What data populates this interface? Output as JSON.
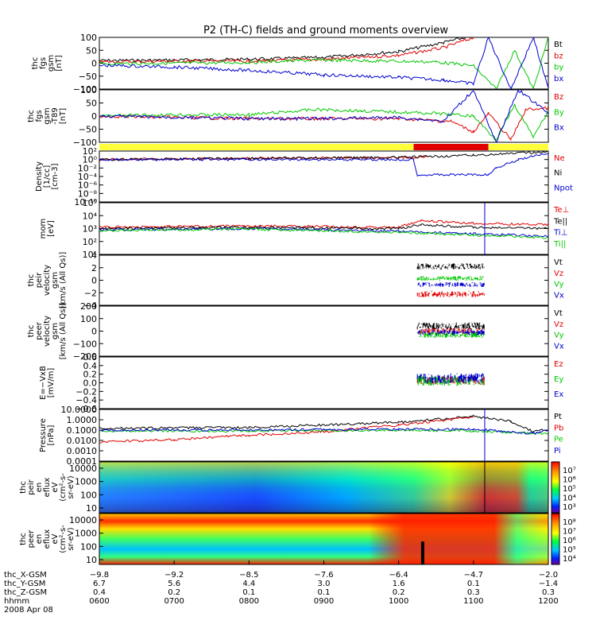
{
  "title": "P2 (TH-C) fields and ground moments overview",
  "colors": {
    "black": "#000000",
    "red": "#e00000",
    "green": "#00c800",
    "blue": "#0000d0",
    "yellow": "#ffff3c"
  },
  "chart_data": [
    {
      "type": "line",
      "ylabel": [
        "thc",
        "fgs",
        "gsm",
        "[nT]"
      ],
      "ylim": [
        -100,
        100
      ],
      "ticks": [
        "100",
        "50",
        "0",
        "−50",
        "−100"
      ],
      "series": [
        {
          "name": "Bt",
          "color": "black",
          "x": [
            6.0,
            7.0,
            8.0,
            9.0,
            10.0,
            10.6,
            10.9,
            11.0
          ],
          "y": [
            10,
            12,
            15,
            22,
            45,
            80,
            100,
            100
          ]
        },
        {
          "name": "bz",
          "color": "red",
          "x": [
            6.0,
            7.0,
            8.0,
            9.0,
            10.0,
            10.6,
            10.9,
            11.0
          ],
          "y": [
            5,
            8,
            8,
            15,
            30,
            60,
            90,
            100
          ]
        },
        {
          "name": "by",
          "color": "green",
          "x": [
            6.0,
            7.0,
            8.0,
            8.9,
            9.5,
            10.5,
            11.0,
            11.3,
            11.55,
            11.8,
            12.0
          ],
          "y": [
            -2,
            0,
            3,
            12,
            10,
            5,
            -10,
            -100,
            50,
            -100,
            100
          ]
        },
        {
          "name": "bx",
          "color": "blue",
          "x": [
            6.0,
            7.0,
            8.0,
            9.0,
            10.0,
            10.6,
            11.0,
            11.2,
            11.5,
            11.8,
            12.0
          ],
          "y": [
            -8,
            -15,
            -28,
            -45,
            -55,
            -65,
            -80,
            100,
            -100,
            100,
            -100
          ]
        }
      ]
    },
    {
      "type": "line",
      "ylabel": [
        "thc",
        "fgs",
        "gsm",
        "-T89",
        "[nT]"
      ],
      "ylim": [
        -100,
        100
      ],
      "ticks": [
        "100",
        "50",
        "0",
        "−50",
        "−100"
      ],
      "series": [
        {
          "name": "Bz",
          "color": "red",
          "x": [
            6.0,
            7.0,
            8.0,
            9.0,
            10.0,
            10.7,
            11.0,
            11.2,
            11.5,
            11.7,
            12.0
          ],
          "y": [
            0,
            -5,
            -10,
            -10,
            -10,
            -20,
            -60,
            10,
            -90,
            25,
            30
          ]
        },
        {
          "name": "By",
          "color": "green",
          "x": [
            6.0,
            7.0,
            8.0,
            8.9,
            9.5,
            10.5,
            11.0,
            11.3,
            11.55,
            11.8,
            12.0
          ],
          "y": [
            0,
            5,
            5,
            25,
            20,
            10,
            0,
            -90,
            40,
            -80,
            20
          ]
        },
        {
          "name": "Bx",
          "color": "blue",
          "x": [
            6.0,
            7.0,
            8.0,
            9.0,
            10.0,
            10.6,
            11.0,
            11.3,
            11.6,
            12.0
          ],
          "y": [
            0,
            -5,
            -10,
            -10,
            -5,
            -20,
            100,
            -100,
            100,
            10
          ]
        }
      ]
    },
    {
      "type": "bar_status",
      "description": "mode bar",
      "segments": [
        {
          "color": "yellow",
          "from": 6.0,
          "to": 10.2
        },
        {
          "color": "red",
          "from": 10.2,
          "to": 11.2
        },
        {
          "color": "yellow",
          "from": 11.2,
          "to": 12.0
        }
      ]
    },
    {
      "type": "line",
      "log": true,
      "ylabel": [
        "Density",
        "[1/cc]",
        "[cm-3]"
      ],
      "ylim_exp": [
        -10,
        2
      ],
      "ticks": [
        "10²",
        "10⁰",
        "10⁻²",
        "10⁻⁴",
        "10⁻⁶",
        "10⁻⁸",
        "10⁻¹⁰"
      ],
      "series": [
        {
          "name": "Ne",
          "color": "red",
          "x": [
            6.0,
            8.0,
            10.0,
            10.4
          ],
          "y": [
            0.0,
            0.3,
            0.5,
            0.5
          ]
        },
        {
          "name": "Ni",
          "color": "black",
          "x": [
            6.0,
            8.0,
            10.0,
            11.0,
            12.0
          ],
          "y": [
            0.0,
            0.3,
            0.5,
            1.0,
            1.8
          ]
        },
        {
          "name": "Npot",
          "color": "blue",
          "x": [
            6.0,
            10.2,
            10.25,
            11.2,
            11.3,
            11.6,
            12.0
          ],
          "y": [
            0.0,
            0.0,
            -3.6,
            -3.6,
            -2.0,
            0.0,
            1.5
          ]
        }
      ]
    },
    {
      "type": "line",
      "log": true,
      "ylabel": [
        "mom",
        "[eV]"
      ],
      "ylim_exp": [
        1,
        5
      ],
      "ticks": [
        "10⁵",
        "10⁴",
        "10³",
        "10²",
        "10¹"
      ],
      "series": [
        {
          "name": "Te⊥",
          "color": "red",
          "x": [
            6.0,
            8.0,
            10.0,
            10.3,
            11.0,
            12.0
          ],
          "y": [
            3.1,
            3.2,
            3.1,
            3.6,
            3.4,
            3.3
          ]
        },
        {
          "name": "Te||",
          "color": "black",
          "x": [
            6.0,
            8.0,
            10.0,
            10.3,
            11.0,
            12.0
          ],
          "y": [
            3.0,
            3.1,
            3.0,
            3.3,
            3.1,
            3.0
          ]
        },
        {
          "name": "Ti⊥",
          "color": "blue",
          "x": [
            6.0,
            8.0,
            10.0,
            11.0,
            12.0
          ],
          "y": [
            2.9,
            3.0,
            2.8,
            2.6,
            2.4
          ]
        },
        {
          "name": "Ti||",
          "color": "green",
          "x": [
            6.0,
            8.0,
            10.0,
            11.0,
            12.0
          ],
          "y": [
            2.85,
            2.95,
            2.7,
            2.5,
            2.3
          ]
        }
      ]
    },
    {
      "type": "scatter_block",
      "ylabel": [
        "thc",
        "peir",
        "velocity",
        "gsm",
        "[km/s (All Qs)]"
      ],
      "ylim": [
        -4,
        4
      ],
      "ticks": [
        "4",
        "2",
        "0",
        "−2",
        "−4"
      ],
      "xrange": [
        10.25,
        11.15
      ],
      "series": [
        {
          "name": "Vt",
          "color": "black",
          "center": 2.2,
          "spread": 1.0
        },
        {
          "name": "Vz",
          "color": "red",
          "center": -2.2,
          "spread": 1.0
        },
        {
          "name": "Vy",
          "color": "green",
          "center": 0.3,
          "spread": 0.8
        },
        {
          "name": "Vx",
          "color": "blue",
          "center": -0.7,
          "spread": 0.8
        }
      ]
    },
    {
      "type": "scatter_block",
      "ylabel": [
        "thc",
        "peer",
        "velocity",
        "gsm",
        "[km/s (All Qs)]"
      ],
      "ylim": [
        -200,
        200
      ],
      "ticks": [
        "200",
        "100",
        "0",
        "−100",
        "−200"
      ],
      "xrange": [
        10.25,
        11.15
      ],
      "series": [
        {
          "name": "Vt",
          "color": "black",
          "center": 40,
          "spread": 60
        },
        {
          "name": "Vz",
          "color": "red",
          "center": 0,
          "spread": 50
        },
        {
          "name": "Vy",
          "color": "green",
          "center": -30,
          "spread": 50
        },
        {
          "name": "Vx",
          "color": "blue",
          "center": -10,
          "spread": 50
        }
      ]
    },
    {
      "type": "scatter_block",
      "ylabel": [
        "E=−VxB",
        "[mV/m]"
      ],
      "ylim": [
        -0.6,
        0.6
      ],
      "ticks": [
        "0.6",
        "0.4",
        "0.2",
        "0.0",
        "−0.2",
        "−0.4",
        "−0.6"
      ],
      "xrange": [
        10.25,
        11.15
      ],
      "series": [
        {
          "name": "Ez",
          "color": "red",
          "center": 0.05,
          "spread": 0.2
        },
        {
          "name": "Ey",
          "color": "green",
          "center": 0.05,
          "spread": 0.25
        },
        {
          "name": "Ex",
          "color": "blue",
          "center": 0.1,
          "spread": 0.25
        }
      ]
    },
    {
      "type": "line",
      "log": true,
      "ylabel": [
        "Pressure",
        "[nPa]"
      ],
      "ylim_exp": [
        -4,
        2
      ],
      "ticks": [
        "10.0000",
        "1.0000",
        "0.1000",
        "0.0100",
        "0.0010",
        "0.0001"
      ],
      "series": [
        {
          "name": "Pt",
          "color": "black",
          "x": [
            6.0,
            8.0,
            10.0,
            11.0,
            11.5,
            11.8,
            12.0
          ],
          "y": [
            -0.2,
            -0.1,
            0.5,
            1.2,
            0.6,
            -0.6,
            -0.3
          ]
        },
        {
          "name": "Pb",
          "color": "red",
          "x": [
            6.0,
            7.0,
            8.0,
            9.0,
            10.0,
            11.0
          ],
          "y": [
            -1.8,
            -1.5,
            -1.0,
            -0.6,
            0.2,
            1.1
          ]
        },
        {
          "name": "Pe",
          "color": "green",
          "x": [
            6.0,
            8.0,
            10.0,
            11.0,
            12.0
          ],
          "y": [
            -0.5,
            -0.5,
            -0.4,
            -0.5,
            -0.8
          ]
        },
        {
          "name": "Pi",
          "color": "blue",
          "x": [
            6.0,
            8.0,
            10.0,
            11.0,
            11.8,
            12.0
          ],
          "y": [
            -0.4,
            -0.4,
            -0.3,
            -0.3,
            -0.8,
            -0.4
          ]
        }
      ]
    },
    {
      "type": "heatmap",
      "ylabel": [
        "thc",
        "peir",
        "en",
        "eflux",
        "eV",
        "(cm²-s-",
        "sr-eV)"
      ],
      "yticks": [
        "10000",
        "1000",
        "100",
        "10"
      ],
      "colorbar": [
        "10⁷",
        "10⁶",
        "10⁵",
        "10⁴",
        "10³"
      ]
    },
    {
      "type": "heatmap",
      "ylabel": [
        "thc",
        "peer",
        "en",
        "eflux",
        "eV",
        "(cm²-s-",
        "sr-eV)"
      ],
      "yticks": [
        "10000",
        "1000",
        "100",
        "10"
      ],
      "colorbar": [
        "10⁸",
        "10⁷",
        "10⁶",
        "10⁵",
        "10⁴"
      ]
    }
  ],
  "xaxis": {
    "rows": [
      {
        "label": "thc_X-GSM",
        "values": [
          "−9.8",
          "−9.2",
          "−8.5",
          "−7.6",
          "−6.4",
          "−4.7",
          "−2.0"
        ]
      },
      {
        "label": "thc_Y-GSM",
        "values": [
          "6.7",
          "5.6",
          "4.4",
          "3.0",
          "1.6",
          "0.1",
          "−1.4"
        ]
      },
      {
        "label": "thc_Z-GSM",
        "values": [
          "0.4",
          "0.2",
          "0.1",
          "0.1",
          "0.2",
          "0.3",
          "0.3"
        ]
      },
      {
        "label": "hhmm",
        "values": [
          "0600",
          "0700",
          "0800",
          "0900",
          "1000",
          "1100",
          "1200"
        ]
      }
    ],
    "date": "2008 Apr 08"
  }
}
